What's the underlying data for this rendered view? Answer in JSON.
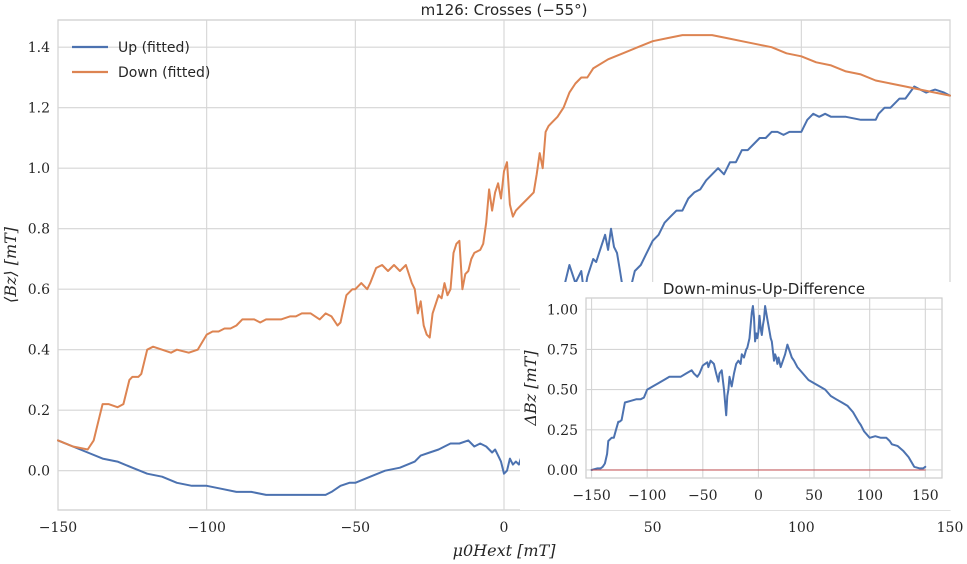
{
  "chart_data": [
    {
      "type": "line",
      "title": "m126: Crosses (−55°)",
      "xlabel": "μ0Hext [mT]",
      "ylabel": "⟨Bz⟩ [mT]",
      "xlim": [
        -150,
        150
      ],
      "ylim": [
        -0.13,
        1.49
      ],
      "xticks": [
        -150,
        -100,
        -50,
        0,
        50,
        100,
        150
      ],
      "yticks": [
        0.0,
        0.2,
        0.4,
        0.6,
        0.8,
        1.0,
        1.2,
        1.4
      ],
      "xtick_labels": [
        "−150",
        "−100",
        "−50",
        "0",
        "50",
        "100",
        "150"
      ],
      "ytick_labels": [
        "0.0",
        "0.2",
        "0.4",
        "0.6",
        "0.8",
        "1.0",
        "1.2",
        "1.4"
      ],
      "grid": true,
      "legend": "top-left",
      "series": [
        {
          "name": "Up (fitted)",
          "color": "#4c72b0",
          "x": [
            -150,
            -145,
            -140,
            -135,
            -130,
            -125,
            -120,
            -115,
            -110,
            -105,
            -100,
            -95,
            -90,
            -85,
            -80,
            -75,
            -70,
            -65,
            -60,
            -58,
            -55,
            -52,
            -50,
            -45,
            -40,
            -35,
            -30,
            -28,
            -25,
            -22,
            -20,
            -18,
            -15,
            -12,
            -10,
            -8,
            -6,
            -4,
            -3,
            -2,
            -1,
            0,
            1,
            2,
            3,
            4,
            5,
            6,
            7,
            8,
            10,
            12,
            14,
            15,
            16,
            18,
            19,
            20,
            22,
            24,
            26,
            27,
            28,
            30,
            31,
            32,
            33,
            34,
            35,
            36,
            37,
            38,
            39,
            40,
            42,
            44,
            46,
            48,
            50,
            52,
            54,
            56,
            58,
            60,
            62,
            64,
            66,
            68,
            70,
            72,
            74,
            76,
            78,
            80,
            82,
            84,
            86,
            88,
            90,
            92,
            94,
            96,
            98,
            100,
            102,
            104,
            106,
            108,
            110,
            115,
            120,
            125,
            126,
            128,
            130,
            133,
            135,
            138,
            140,
            142,
            145,
            148,
            150
          ],
          "y": [
            0.1,
            0.08,
            0.06,
            0.04,
            0.03,
            0.01,
            -0.01,
            -0.02,
            -0.04,
            -0.05,
            -0.05,
            -0.06,
            -0.07,
            -0.07,
            -0.08,
            -0.08,
            -0.08,
            -0.08,
            -0.08,
            -0.07,
            -0.05,
            -0.04,
            -0.04,
            -0.02,
            0.0,
            0.01,
            0.03,
            0.05,
            0.06,
            0.07,
            0.08,
            0.09,
            0.09,
            0.1,
            0.08,
            0.09,
            0.08,
            0.06,
            0.07,
            0.05,
            0.03,
            -0.01,
            0.0,
            0.04,
            0.02,
            0.03,
            0.02,
            0.05,
            0.04,
            0.02,
            0.01,
            0.02,
            0.05,
            0.2,
            0.35,
            0.5,
            0.55,
            0.6,
            0.68,
            0.62,
            0.66,
            0.58,
            0.64,
            0.7,
            0.69,
            0.72,
            0.75,
            0.78,
            0.73,
            0.8,
            0.74,
            0.72,
            0.66,
            0.6,
            0.58,
            0.66,
            0.68,
            0.72,
            0.76,
            0.78,
            0.82,
            0.84,
            0.86,
            0.86,
            0.9,
            0.92,
            0.93,
            0.96,
            0.98,
            1.0,
            0.98,
            1.02,
            1.02,
            1.06,
            1.06,
            1.08,
            1.1,
            1.1,
            1.12,
            1.12,
            1.11,
            1.12,
            1.12,
            1.12,
            1.16,
            1.18,
            1.17,
            1.18,
            1.17,
            1.17,
            1.16,
            1.16,
            1.18,
            1.2,
            1.2,
            1.23,
            1.23,
            1.27,
            1.26,
            1.25,
            1.26,
            1.25,
            1.24
          ]
        },
        {
          "name": "Down (fitted)",
          "color": "#dd8452",
          "x": [
            -150,
            -145,
            -140,
            -138,
            -136,
            -135,
            -133,
            -130,
            -128,
            -126,
            -125,
            -123,
            -122,
            -120,
            -118,
            -115,
            -112,
            -110,
            -106,
            -103,
            -100,
            -98,
            -96,
            -94,
            -92,
            -90,
            -88,
            -86,
            -84,
            -82,
            -80,
            -78,
            -75,
            -72,
            -70,
            -68,
            -65,
            -62,
            -60,
            -58,
            -56,
            -55,
            -53,
            -51,
            -50,
            -48,
            -46,
            -45,
            -43,
            -41,
            -39,
            -37,
            -35,
            -33,
            -31,
            -30,
            -29,
            -28,
            -27,
            -26,
            -25,
            -24,
            -23,
            -22,
            -21,
            -20,
            -19,
            -18,
            -17,
            -16,
            -15,
            -14,
            -13,
            -12,
            -11,
            -10,
            -8,
            -7,
            -6,
            -5,
            -4,
            -3,
            -2,
            -1,
            0,
            1,
            2,
            3,
            4,
            6,
            8,
            10,
            11,
            12,
            13,
            14,
            15,
            16,
            18,
            20,
            22,
            24,
            26,
            28,
            30,
            35,
            40,
            45,
            50,
            55,
            60,
            65,
            70,
            75,
            80,
            85,
            90,
            95,
            100,
            105,
            110,
            115,
            120,
            125,
            130,
            135,
            140,
            145,
            150
          ],
          "y": [
            0.1,
            0.08,
            0.07,
            0.1,
            0.18,
            0.22,
            0.22,
            0.21,
            0.22,
            0.3,
            0.31,
            0.31,
            0.32,
            0.4,
            0.41,
            0.4,
            0.39,
            0.4,
            0.39,
            0.4,
            0.45,
            0.46,
            0.46,
            0.47,
            0.47,
            0.48,
            0.5,
            0.5,
            0.5,
            0.49,
            0.5,
            0.5,
            0.5,
            0.51,
            0.51,
            0.52,
            0.52,
            0.5,
            0.52,
            0.51,
            0.48,
            0.49,
            0.58,
            0.6,
            0.6,
            0.62,
            0.6,
            0.62,
            0.67,
            0.68,
            0.66,
            0.68,
            0.66,
            0.68,
            0.62,
            0.6,
            0.52,
            0.56,
            0.48,
            0.45,
            0.44,
            0.52,
            0.55,
            0.58,
            0.57,
            0.62,
            0.58,
            0.6,
            0.72,
            0.75,
            0.76,
            0.6,
            0.65,
            0.66,
            0.7,
            0.72,
            0.73,
            0.75,
            0.82,
            0.93,
            0.86,
            0.92,
            0.95,
            0.9,
            0.99,
            1.02,
            0.88,
            0.84,
            0.86,
            0.88,
            0.9,
            0.92,
            0.98,
            1.05,
            1.0,
            1.12,
            1.14,
            1.15,
            1.17,
            1.2,
            1.25,
            1.28,
            1.3,
            1.3,
            1.33,
            1.36,
            1.38,
            1.4,
            1.42,
            1.43,
            1.44,
            1.44,
            1.44,
            1.43,
            1.42,
            1.41,
            1.4,
            1.38,
            1.37,
            1.35,
            1.34,
            1.32,
            1.31,
            1.29,
            1.28,
            1.27,
            1.26,
            1.25,
            1.24
          ]
        }
      ]
    },
    {
      "type": "line",
      "title": "Down-minus-Up-Difference",
      "xlabel": "",
      "ylabel": "ΔBz [mT]",
      "xlim": [
        -155,
        165
      ],
      "ylim": [
        -0.05,
        1.07
      ],
      "xticks": [
        -150,
        -100,
        -50,
        0,
        50,
        100,
        150
      ],
      "yticks": [
        0.0,
        0.25,
        0.5,
        0.75,
        1.0
      ],
      "xtick_labels": [
        "−150",
        "−100",
        "−50",
        "0",
        "50",
        "100",
        "150"
      ],
      "ytick_labels": [
        "0.00",
        "0.25",
        "0.50",
        "0.75",
        "1.00"
      ],
      "grid": true,
      "series": [
        {
          "name": "",
          "color": "#4c72b0",
          "x": [
            -150,
            -145,
            -142,
            -140,
            -138,
            -136,
            -135,
            -132,
            -130,
            -128,
            -126,
            -125,
            -123,
            -120,
            -115,
            -110,
            -106,
            -103,
            -100,
            -95,
            -90,
            -85,
            -80,
            -75,
            -70,
            -65,
            -60,
            -58,
            -55,
            -53,
            -50,
            -48,
            -46,
            -45,
            -43,
            -40,
            -38,
            -36,
            -35,
            -33,
            -31,
            -30,
            -29,
            -28,
            -27,
            -26,
            -25,
            -24,
            -22,
            -20,
            -18,
            -16,
            -15,
            -13,
            -11,
            -10,
            -8,
            -6,
            -5,
            -4,
            -3,
            -2,
            -1,
            0,
            1,
            2,
            3,
            4,
            5,
            6,
            8,
            10,
            11,
            12,
            13,
            14,
            15,
            16,
            17,
            18,
            20,
            22,
            24,
            26,
            28,
            30,
            32,
            35,
            40,
            45,
            50,
            55,
            60,
            65,
            70,
            75,
            80,
            85,
            90,
            92,
            95,
            100,
            105,
            110,
            115,
            118,
            120,
            125,
            130,
            135,
            140,
            145,
            148,
            150
          ],
          "y": [
            0.0,
            0.01,
            0.01,
            0.02,
            0.04,
            0.1,
            0.18,
            0.2,
            0.2,
            0.25,
            0.3,
            0.3,
            0.31,
            0.42,
            0.43,
            0.44,
            0.44,
            0.45,
            0.5,
            0.52,
            0.54,
            0.56,
            0.58,
            0.58,
            0.58,
            0.6,
            0.62,
            0.6,
            0.58,
            0.6,
            0.65,
            0.66,
            0.67,
            0.64,
            0.68,
            0.66,
            0.6,
            0.55,
            0.6,
            0.62,
            0.5,
            0.42,
            0.34,
            0.46,
            0.5,
            0.58,
            0.55,
            0.52,
            0.6,
            0.66,
            0.68,
            0.66,
            0.72,
            0.7,
            0.75,
            0.76,
            0.82,
            0.98,
            1.02,
            0.95,
            0.8,
            0.85,
            0.82,
            0.86,
            0.96,
            0.88,
            0.84,
            0.9,
            0.94,
            1.02,
            0.94,
            0.86,
            0.82,
            0.8,
            0.74,
            0.68,
            0.72,
            0.7,
            0.66,
            0.7,
            0.64,
            0.68,
            0.72,
            0.78,
            0.74,
            0.7,
            0.68,
            0.64,
            0.6,
            0.56,
            0.54,
            0.52,
            0.5,
            0.46,
            0.44,
            0.42,
            0.4,
            0.36,
            0.3,
            0.28,
            0.24,
            0.2,
            0.21,
            0.2,
            0.2,
            0.18,
            0.16,
            0.15,
            0.12,
            0.08,
            0.02,
            0.01,
            0.01,
            0.02
          ]
        },
        {
          "name": "",
          "color": "#c44e52",
          "x": [
            -150,
            150
          ],
          "y": [
            0.0,
            0.0
          ]
        }
      ]
    }
  ]
}
